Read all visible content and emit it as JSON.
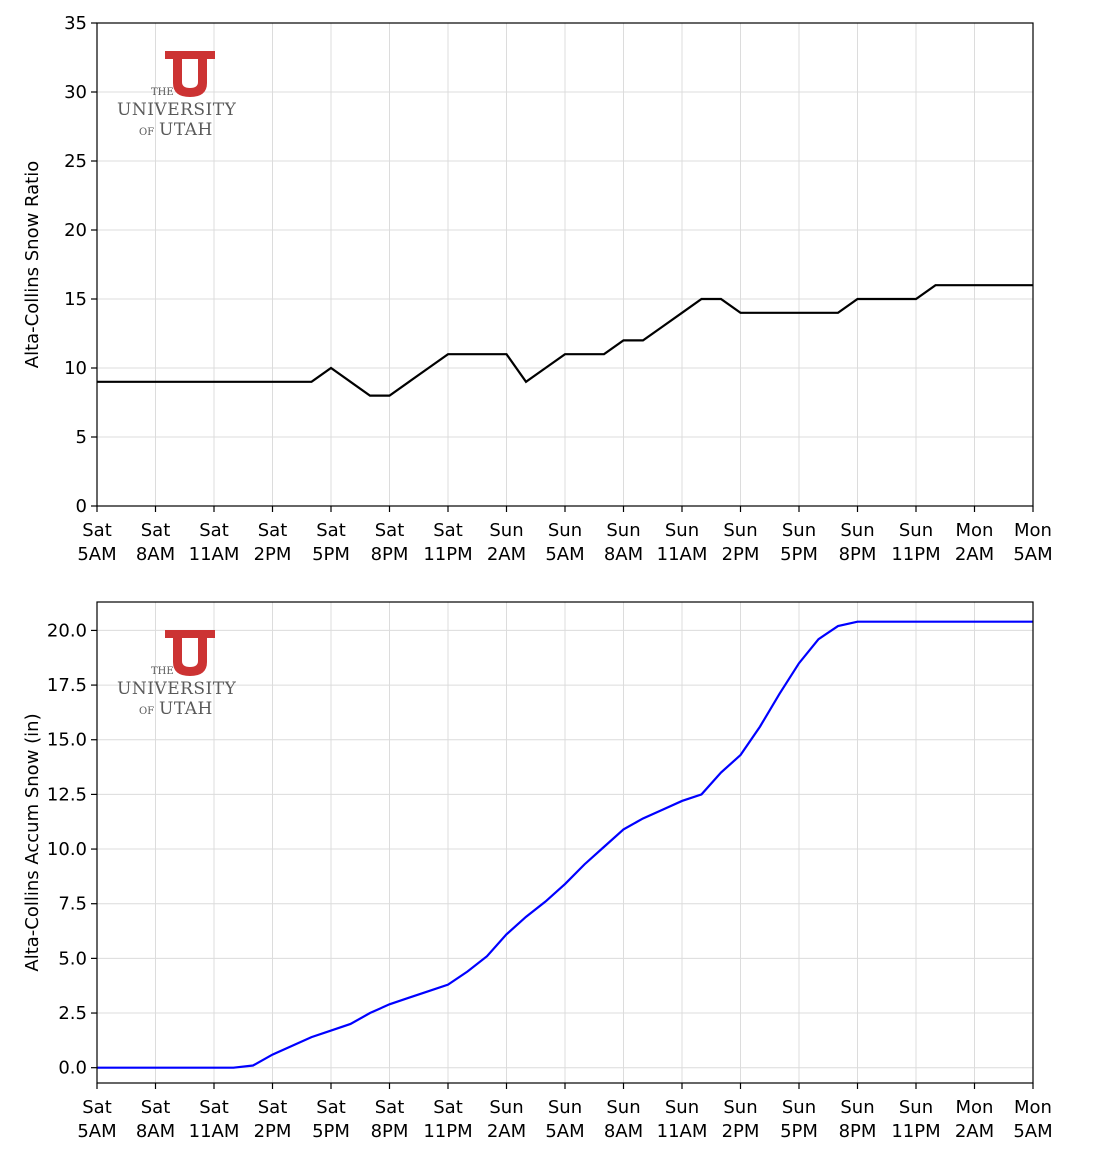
{
  "logo": {
    "line1": "THE",
    "line2": "UNIVERSITY",
    "line3a": "OF",
    "line3b": "UTAH",
    "color": "#cc3333"
  },
  "chart_data": [
    {
      "type": "line",
      "ylabel": "Alta-Collins Snow Ratio",
      "ylim": [
        0,
        35
      ],
      "yticks": [
        0,
        5,
        10,
        15,
        20,
        25,
        30,
        35
      ],
      "ytick_labels": [
        "0",
        "5",
        "10",
        "15",
        "20",
        "25",
        "30",
        "35"
      ],
      "x_tick_labels": [
        [
          "Sat",
          "5AM"
        ],
        [
          "Sat",
          "8AM"
        ],
        [
          "Sat",
          "11AM"
        ],
        [
          "Sat",
          "2PM"
        ],
        [
          "Sat",
          "5PM"
        ],
        [
          "Sat",
          "8PM"
        ],
        [
          "Sat",
          "11PM"
        ],
        [
          "Sun",
          "2AM"
        ],
        [
          "Sun",
          "5AM"
        ],
        [
          "Sun",
          "8AM"
        ],
        [
          "Sun",
          "11AM"
        ],
        [
          "Sun",
          "2PM"
        ],
        [
          "Sun",
          "5PM"
        ],
        [
          "Sun",
          "8PM"
        ],
        [
          "Sun",
          "11PM"
        ],
        [
          "Mon",
          "2AM"
        ],
        [
          "Mon",
          "5AM"
        ]
      ],
      "grid": true,
      "color": "#000000",
      "series": [
        {
          "values": [
            9,
            9,
            9,
            9,
            9,
            9,
            9,
            9,
            9,
            9,
            9,
            9,
            10,
            9,
            8,
            8,
            9,
            10,
            11,
            11,
            11,
            11,
            9,
            10,
            11,
            11,
            11,
            12,
            12,
            13,
            14,
            15,
            15,
            14,
            14,
            14,
            14,
            14,
            14,
            15,
            15,
            15,
            15,
            16,
            16,
            16,
            16,
            16,
            16
          ]
        }
      ]
    },
    {
      "type": "line",
      "ylabel": "Alta-Collins Accum Snow (in)",
      "ylim": [
        -0.7,
        21.3
      ],
      "yticks": [
        0,
        2.5,
        5,
        7.5,
        10,
        12.5,
        15,
        17.5,
        20
      ],
      "ytick_labels": [
        "0.0",
        "2.5",
        "5.0",
        "7.5",
        "10.0",
        "12.5",
        "15.0",
        "17.5",
        "20.0"
      ],
      "x_tick_labels": [
        [
          "Sat",
          "5AM"
        ],
        [
          "Sat",
          "8AM"
        ],
        [
          "Sat",
          "11AM"
        ],
        [
          "Sat",
          "2PM"
        ],
        [
          "Sat",
          "5PM"
        ],
        [
          "Sat",
          "8PM"
        ],
        [
          "Sat",
          "11PM"
        ],
        [
          "Sun",
          "2AM"
        ],
        [
          "Sun",
          "5AM"
        ],
        [
          "Sun",
          "8AM"
        ],
        [
          "Sun",
          "11AM"
        ],
        [
          "Sun",
          "2PM"
        ],
        [
          "Sun",
          "5PM"
        ],
        [
          "Sun",
          "8PM"
        ],
        [
          "Sun",
          "11PM"
        ],
        [
          "Mon",
          "2AM"
        ],
        [
          "Mon",
          "5AM"
        ]
      ],
      "grid": true,
      "color": "#0000ff",
      "series": [
        {
          "values": [
            0,
            0,
            0,
            0,
            0,
            0,
            0,
            0,
            0.1,
            0.6,
            1.0,
            1.4,
            1.7,
            2.0,
            2.5,
            2.9,
            3.2,
            3.5,
            3.8,
            4.4,
            5.1,
            6.1,
            6.9,
            7.6,
            8.4,
            9.3,
            10.1,
            10.9,
            11.4,
            11.8,
            12.2,
            12.5,
            13.5,
            14.3,
            15.6,
            17.1,
            18.5,
            19.6,
            20.2,
            20.4,
            20.4,
            20.4,
            20.4,
            20.4,
            20.4,
            20.4,
            20.4,
            20.4,
            20.4
          ]
        }
      ]
    }
  ]
}
